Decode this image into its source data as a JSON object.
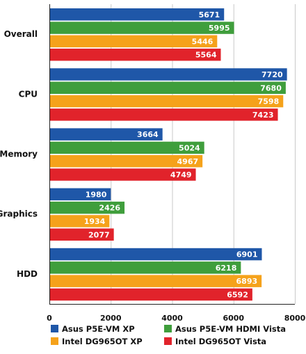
{
  "chart_data": {
    "type": "bar",
    "orientation": "horizontal",
    "categories": [
      "Overall",
      "CPU",
      "Memory",
      "Graphics",
      "HDD"
    ],
    "series": [
      {
        "name": "Asus P5E-VM XP",
        "color": "#1f57a8",
        "values": [
          5671,
          7720,
          3664,
          1980,
          6901
        ]
      },
      {
        "name": "Asus P5E-VM HDMI Vista",
        "color": "#3f9e3c",
        "values": [
          5995,
          7680,
          5024,
          2426,
          6218
        ]
      },
      {
        "name": "Intel DG965OT XP",
        "color": "#f5a21b",
        "values": [
          5446,
          7598,
          4967,
          1934,
          6893
        ]
      },
      {
        "name": "Intel DG965OT Vista",
        "color": "#e1232b",
        "values": [
          5564,
          7423,
          4749,
          2077,
          6592
        ]
      }
    ],
    "xlim": [
      0,
      8000
    ],
    "xticks": [
      "0",
      "2000",
      "4000",
      "6000",
      "8000"
    ],
    "title": "",
    "xlabel": "",
    "ylabel": "",
    "grid": true,
    "legend_position": "bottom",
    "data_labels": true
  }
}
